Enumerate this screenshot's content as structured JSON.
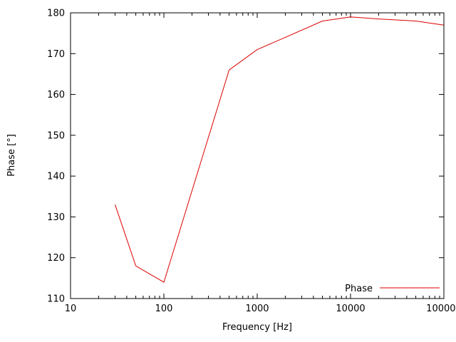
{
  "chart_data": {
    "type": "line",
    "x_scale": "log",
    "title": "",
    "xlabel": "Frequency [Hz]",
    "ylabel": "Phase [°]",
    "xlim": [
      10,
      100000
    ],
    "ylim": [
      110,
      180
    ],
    "x_ticks": [
      10,
      100,
      1000,
      10000,
      100000
    ],
    "x_tick_labels": [
      "10",
      "100",
      "1000",
      "10000",
      "100000"
    ],
    "y_ticks": [
      110,
      120,
      130,
      140,
      150,
      160,
      170,
      180
    ],
    "y_tick_labels": [
      "110",
      "120",
      "130",
      "140",
      "150",
      "160",
      "170",
      "180"
    ],
    "grid": false,
    "legend": {
      "label": "Phase",
      "position": "bottom-right"
    },
    "series": [
      {
        "name": "Phase",
        "color": "#dd0000",
        "points": [
          [
            30,
            133
          ],
          [
            50,
            118
          ],
          [
            100,
            114
          ],
          [
            500,
            166
          ],
          [
            1000,
            171
          ],
          [
            2000,
            174
          ],
          [
            5000,
            178
          ],
          [
            10000,
            179
          ],
          [
            20000,
            178.5
          ],
          [
            50000,
            178
          ],
          [
            100000,
            177
          ]
        ]
      }
    ]
  }
}
